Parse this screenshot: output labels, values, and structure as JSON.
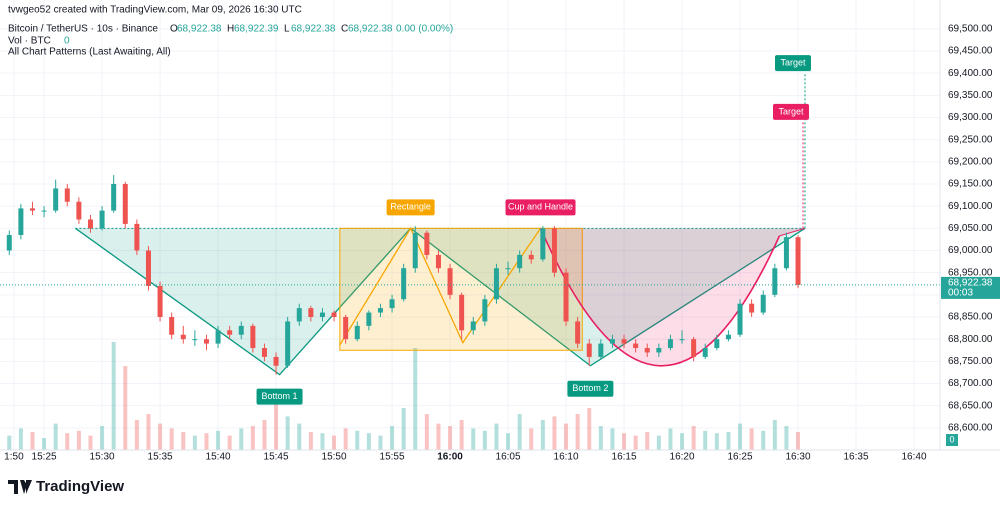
{
  "chart_data": {
    "type": "candlestick",
    "header": {
      "credit": "tvwgeo52 created with TradingView.com, Mar 09, 2026 16:30 UTC",
      "symbol": "Bitcoin / TetherUS · 10s · Binance",
      "ohlc": [
        {
          "key": "O",
          "value": "68,922.38"
        },
        {
          "key": "H",
          "value": "68,922.39"
        },
        {
          "key": "L",
          "value": "68,922.38"
        },
        {
          "key": "C",
          "value": "68,922.38"
        }
      ],
      "change": "0.00 (0.00%)",
      "vol_label": "Vol · BTC",
      "vol_value": "0",
      "indicator": "All Chart Patterns (Last Awaiting, All)"
    },
    "logo": "TradingView",
    "up_color": "#26a69a",
    "down_color": "#ef5350",
    "xlim": [
      921.2,
      1002.24
    ],
    "ylim": [
      68550,
      69565
    ],
    "grid": true,
    "xticks": [
      {
        "value": 922.4,
        "label": "1:50"
      },
      {
        "value": 925,
        "label": "15:25"
      },
      {
        "value": 930,
        "label": "15:30"
      },
      {
        "value": 935,
        "label": "15:35"
      },
      {
        "value": 940,
        "label": "15:40"
      },
      {
        "value": 945,
        "label": "15:45"
      },
      {
        "value": 950,
        "label": "15:50"
      },
      {
        "value": 955,
        "label": "15:55"
      },
      {
        "value": 960,
        "label": "16:00"
      },
      {
        "value": 965,
        "label": "16:05"
      },
      {
        "value": 970,
        "label": "16:10"
      },
      {
        "value": 975,
        "label": "16:15"
      },
      {
        "value": 980,
        "label": "16:20"
      },
      {
        "value": 985,
        "label": "16:25"
      },
      {
        "value": 990,
        "label": "16:30"
      },
      {
        "value": 995,
        "label": "16:35"
      },
      {
        "value": 1000,
        "label": "16:40"
      }
    ],
    "yticks": [
      {
        "value": 69500,
        "label": "69,500.00"
      },
      {
        "value": 69450,
        "label": "69,450.00"
      },
      {
        "value": 69400,
        "label": "69,400.00"
      },
      {
        "value": 69350,
        "label": "69,350.00"
      },
      {
        "value": 69300,
        "label": "69,300.00"
      },
      {
        "value": 69250,
        "label": "69,250.00"
      },
      {
        "value": 69200,
        "label": "69,200.00"
      },
      {
        "value": 69150,
        "label": "69,150.00"
      },
      {
        "value": 69100,
        "label": "69,100.00"
      },
      {
        "value": 69050,
        "label": "69,050.00"
      },
      {
        "value": 69000,
        "label": "69,000.00"
      },
      {
        "value": 68950,
        "label": "68,950.00"
      },
      {
        "value": 68900,
        "label": "68,900.00"
      },
      {
        "value": 68850,
        "label": "68,850.00"
      },
      {
        "value": 68800,
        "label": "68,800.00"
      },
      {
        "value": 68750,
        "label": "68,750.00"
      },
      {
        "value": 68700,
        "label": "68,700.00"
      },
      {
        "value": 68650,
        "label": "68,650.00"
      },
      {
        "value": 68600,
        "label": "68,600.00"
      }
    ],
    "last_price": {
      "value": 68922.38,
      "label": "68,922.38"
    },
    "countdown": "00:03",
    "x": [
      922,
      923,
      924,
      925,
      926,
      927,
      928,
      929,
      930,
      931,
      932,
      933,
      934,
      935,
      936,
      937,
      938,
      939,
      940,
      941,
      942,
      943,
      944,
      945,
      946,
      947,
      948,
      949,
      950,
      951,
      952,
      953,
      954,
      955,
      956,
      957,
      958,
      959,
      960,
      961,
      962,
      963,
      964,
      965,
      966,
      967,
      968,
      969,
      970,
      971,
      972,
      973,
      974,
      975,
      976,
      977,
      978,
      979,
      980,
      981,
      982,
      983,
      984,
      985,
      986,
      987,
      988,
      989,
      990
    ],
    "candles": [
      [
        69000,
        69045,
        68990,
        69035
      ],
      [
        69035,
        69105,
        69025,
        69095
      ],
      [
        69095,
        69110,
        69080,
        69090
      ],
      [
        69090,
        69100,
        69075,
        69090
      ],
      [
        69090,
        69160,
        69085,
        69140
      ],
      [
        69140,
        69150,
        69100,
        69110
      ],
      [
        69110,
        69120,
        69060,
        69070
      ],
      [
        69070,
        69080,
        69040,
        69050
      ],
      [
        69050,
        69100,
        69045,
        69090
      ],
      [
        69090,
        69170,
        69085,
        69150
      ],
      [
        69150,
        69155,
        69050,
        69060
      ],
      [
        69060,
        69070,
        68990,
        69000
      ],
      [
        69000,
        69010,
        68910,
        68920
      ],
      [
        68920,
        68930,
        68840,
        68850
      ],
      [
        68850,
        68860,
        68800,
        68810
      ],
      [
        68810,
        68830,
        68790,
        68800
      ],
      [
        68800,
        68820,
        68785,
        68800
      ],
      [
        68800,
        68810,
        68775,
        68790
      ],
      [
        68790,
        68830,
        68780,
        68820
      ],
      [
        68820,
        68830,
        68800,
        68810
      ],
      [
        68810,
        68840,
        68800,
        68830
      ],
      [
        68830,
        68835,
        68770,
        68780
      ],
      [
        68780,
        68790,
        68750,
        68760
      ],
      [
        68760,
        68770,
        68720,
        68740
      ],
      [
        68740,
        68850,
        68735,
        68840
      ],
      [
        68840,
        68880,
        68830,
        68870
      ],
      [
        68870,
        68875,
        68840,
        68850
      ],
      [
        68850,
        68870,
        68840,
        68860
      ],
      [
        68860,
        68865,
        68840,
        68850
      ],
      [
        68850,
        68855,
        68790,
        68800
      ],
      [
        68800,
        68840,
        68795,
        68830
      ],
      [
        68830,
        68865,
        68820,
        68860
      ],
      [
        68860,
        68880,
        68850,
        68870
      ],
      [
        68870,
        68900,
        68860,
        68890
      ],
      [
        68890,
        68970,
        68885,
        68960
      ],
      [
        68960,
        69055,
        68950,
        69040
      ],
      [
        69040,
        69045,
        68980,
        68990
      ],
      [
        68990,
        69000,
        68950,
        68960
      ],
      [
        68960,
        68970,
        68890,
        68900
      ],
      [
        68900,
        68905,
        68800,
        68820
      ],
      [
        68820,
        68850,
        68810,
        68840
      ],
      [
        68840,
        68900,
        68830,
        68890
      ],
      [
        68890,
        68970,
        68880,
        68960
      ],
      [
        68960,
        68975,
        68945,
        68960
      ],
      [
        68960,
        69000,
        68950,
        68990
      ],
      [
        68990,
        69000,
        68970,
        68980
      ],
      [
        68980,
        69055,
        68975,
        69050
      ],
      [
        69050,
        69055,
        68940,
        68950
      ],
      [
        68950,
        68960,
        68830,
        68840
      ],
      [
        68840,
        68850,
        68780,
        68790
      ],
      [
        68790,
        68800,
        68740,
        68760
      ],
      [
        68760,
        68800,
        68755,
        68790
      ],
      [
        68790,
        68810,
        68780,
        68800
      ],
      [
        68800,
        68810,
        68780,
        68790
      ],
      [
        68790,
        68800,
        68770,
        68780
      ],
      [
        68780,
        68790,
        68760,
        68770
      ],
      [
        68770,
        68790,
        68760,
        68780
      ],
      [
        68780,
        68810,
        68775,
        68800
      ],
      [
        68800,
        68820,
        68790,
        68800
      ],
      [
        68800,
        68805,
        68750,
        68760
      ],
      [
        68760,
        68790,
        68755,
        68780
      ],
      [
        68780,
        68810,
        68775,
        68800
      ],
      [
        68800,
        68820,
        68795,
        68810
      ],
      [
        68810,
        68890,
        68805,
        68880
      ],
      [
        68880,
        68890,
        68850,
        68860
      ],
      [
        68860,
        68910,
        68855,
        68900
      ],
      [
        68900,
        68970,
        68895,
        68960
      ],
      [
        68960,
        69040,
        68955,
        69030
      ],
      [
        69030,
        69035,
        68915,
        68922.38
      ]
    ],
    "volume": [
      12,
      18,
      15,
      10,
      22,
      14,
      16,
      12,
      20,
      90,
      70,
      25,
      30,
      22,
      18,
      15,
      12,
      14,
      16,
      12,
      18,
      20,
      25,
      40,
      28,
      22,
      15,
      14,
      12,
      18,
      16,
      14,
      12,
      20,
      35,
      85,
      30,
      22,
      20,
      25,
      18,
      16,
      22,
      14,
      30,
      18,
      25,
      28,
      22,
      30,
      35,
      20,
      18,
      14,
      12,
      15,
      12,
      18,
      14,
      20,
      16,
      14,
      15,
      22,
      18,
      16,
      25,
      20,
      15
    ],
    "volume_lim": [
      0,
      100
    ],
    "double_bottom": {
      "labels": [
        "Bottom 1",
        "Bottom 2"
      ],
      "color": "#089981",
      "points": [
        [
          927.7,
          69050
        ],
        [
          945.3,
          68720
        ],
        [
          956.6,
          69050
        ],
        [
          972.1,
          68740
        ],
        [
          990.6,
          69050
        ]
      ],
      "target": 69400,
      "target_label": "Target"
    },
    "rectangle": {
      "label": "Rectangle",
      "color": "#f7a600",
      "x": [
        950.5,
        971.4
      ],
      "y": [
        68775,
        69050
      ],
      "zigzag": [
        [
          950.5,
          68787
        ],
        [
          956.6,
          69050
        ],
        [
          961.1,
          68792
        ],
        [
          967.8,
          69050
        ]
      ]
    },
    "cup_and_handle": {
      "label": "Cup and Handle",
      "color": "#e91e63",
      "points": [
        [
          967.8,
          69050
        ],
        [
          978.1,
          68740
        ],
        [
          988.4,
          69033
        ],
        [
          990.6,
          69050
        ]
      ],
      "target": 69290,
      "target_label": "Target"
    }
  }
}
